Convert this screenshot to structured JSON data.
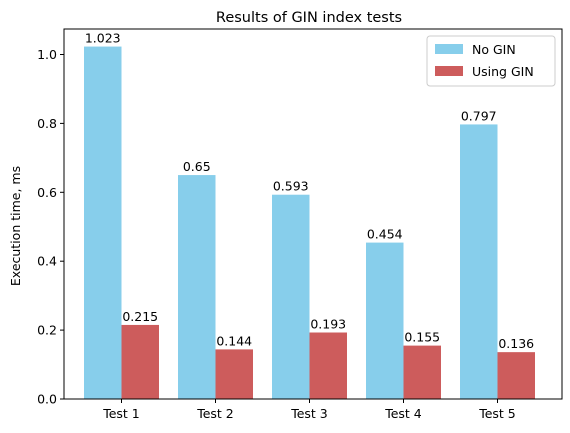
{
  "chart_data": {
    "type": "bar",
    "title": "Results of GIN index tests",
    "xlabel": "",
    "ylabel": "Execution time, ms",
    "categories": [
      "Test 1",
      "Test 2",
      "Test 3",
      "Test 4",
      "Test 5"
    ],
    "series": [
      {
        "name": "No GIN",
        "color": "#87CEEB",
        "values": [
          1.023,
          0.65,
          0.593,
          0.454,
          0.797
        ],
        "labels": [
          "1.023",
          "0.65",
          "0.593",
          "0.454",
          "0.797"
        ]
      },
      {
        "name": "Using GIN",
        "color": "#CD5C5C",
        "values": [
          0.215,
          0.144,
          0.193,
          0.155,
          0.136
        ],
        "labels": [
          "0.215",
          "0.144",
          "0.193",
          "0.155",
          "0.136"
        ]
      }
    ],
    "ylim": [
      0,
      1.074
    ],
    "yticks": [
      "0.0",
      "0.2",
      "0.4",
      "0.6",
      "0.8",
      "1.0"
    ],
    "grid": false,
    "legend_position": "top-right"
  }
}
